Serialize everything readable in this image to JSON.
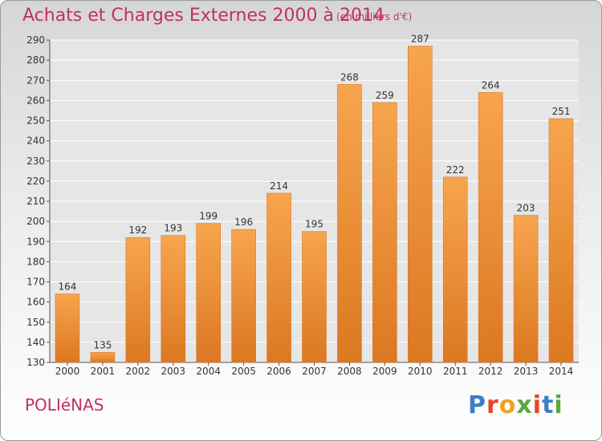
{
  "header": {
    "title": "Achats et Charges Externes 2000 à 2014",
    "unit": "(en milliers d'€)"
  },
  "footer": {
    "city": "POLIéNAS",
    "logo": "Proxiti",
    "logo_colors": [
      "#3d7fc4",
      "#e8442c",
      "#f2a31c",
      "#5aa83c",
      "#e8442c",
      "#3d7fc4",
      "#5aa83c"
    ]
  },
  "colors": {
    "title": "#c0306a",
    "bar_top": "#f7a54e",
    "bar_bottom": "#dc7822",
    "bar_edge": "#d97a26",
    "grid": "#ffffff"
  },
  "chart_data": {
    "type": "bar",
    "title": "Achats et Charges Externes 2000 à 2014",
    "categories": [
      "2000",
      "2001",
      "2002",
      "2003",
      "2004",
      "2005",
      "2006",
      "2007",
      "2008",
      "2009",
      "2010",
      "2011",
      "2012",
      "2013",
      "2014"
    ],
    "values": [
      164,
      135,
      192,
      193,
      199,
      196,
      214,
      195,
      268,
      259,
      287,
      222,
      264,
      203,
      251
    ],
    "ylim": [
      130,
      290
    ],
    "yticks": [
      130,
      140,
      150,
      160,
      170,
      180,
      190,
      200,
      210,
      220,
      230,
      240,
      250,
      260,
      270,
      280,
      290
    ],
    "grid": true,
    "data_labels": true
  }
}
